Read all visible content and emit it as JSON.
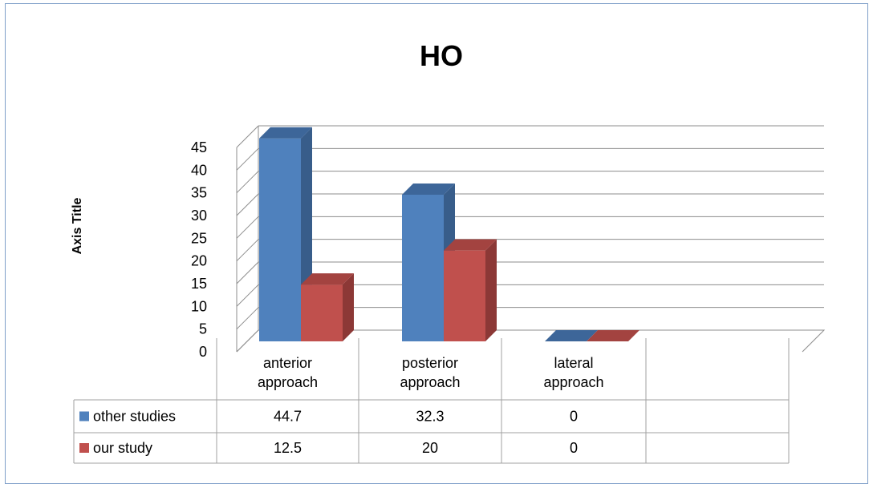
{
  "chart_data": {
    "type": "bar",
    "title": "HO",
    "ylabel": "Axis Title",
    "xlabel": "",
    "ylim": [
      0,
      45
    ],
    "yticks": [
      0,
      5,
      10,
      15,
      20,
      25,
      30,
      35,
      40,
      45
    ],
    "grid": true,
    "categories": [
      "anterior approach",
      "posterior approach",
      "lateral approach"
    ],
    "category_lines": [
      [
        "anterior",
        "approach"
      ],
      [
        "posterior",
        "approach"
      ],
      [
        "lateral",
        "approach"
      ]
    ],
    "series": [
      {
        "name": "other studies",
        "values": [
          44.7,
          32.3,
          0
        ],
        "labels": [
          "44.7",
          "32.3",
          "0"
        ]
      },
      {
        "name": "our study",
        "values": [
          12.5,
          20,
          0
        ],
        "labels": [
          "12.5",
          "20",
          "0"
        ]
      }
    ],
    "colors": {
      "other studies": {
        "front": "#4f81bd",
        "side": "#385d8a",
        "top": "#3d6699"
      },
      "our study": {
        "front": "#c0504d",
        "side": "#8c3836",
        "top": "#a34340"
      },
      "grid": "#8c8c8c",
      "frame": "#7f9fc9"
    }
  }
}
